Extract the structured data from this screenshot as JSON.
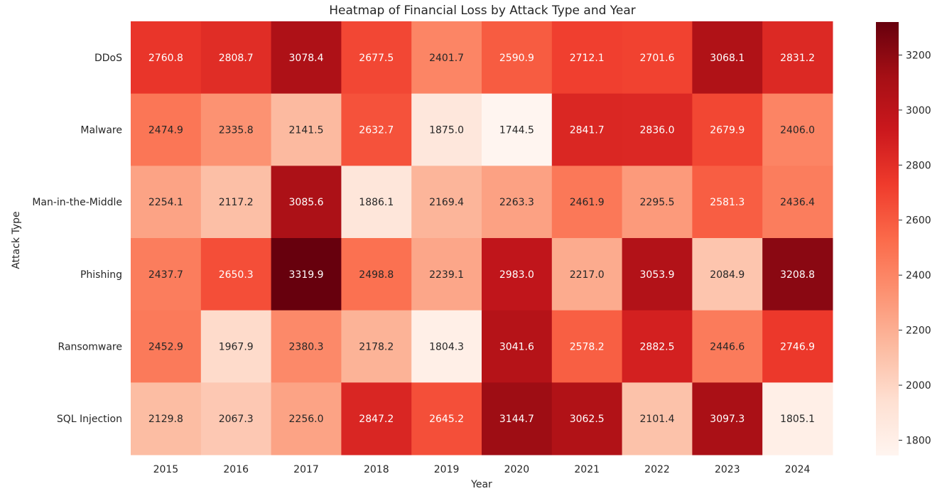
{
  "chart_data": {
    "type": "heatmap",
    "title": "Heatmap of Financial Loss by Attack Type and Year",
    "xlabel": "Year",
    "ylabel": "Attack Type",
    "x_categories": [
      "2015",
      "2016",
      "2017",
      "2018",
      "2019",
      "2020",
      "2021",
      "2022",
      "2023",
      "2024"
    ],
    "y_categories": [
      "DDoS",
      "Malware",
      "Man-in-the-Middle",
      "Phishing",
      "Ransomware",
      "SQL Injection"
    ],
    "values": [
      [
        2760.8,
        2808.7,
        3078.4,
        2677.5,
        2401.7,
        2590.9,
        2712.1,
        2701.6,
        3068.1,
        2831.2
      ],
      [
        2474.9,
        2335.8,
        2141.5,
        2632.7,
        1875.0,
        1744.5,
        2841.7,
        2836.0,
        2679.9,
        2406.0
      ],
      [
        2254.1,
        2117.2,
        3085.6,
        1886.1,
        2169.4,
        2263.3,
        2461.9,
        2295.5,
        2581.3,
        2436.4
      ],
      [
        2437.7,
        2650.3,
        3319.9,
        2498.8,
        2239.1,
        2983.0,
        2217.0,
        3053.9,
        2084.9,
        3208.8
      ],
      [
        2452.9,
        1967.9,
        2380.3,
        2178.2,
        1804.3,
        3041.6,
        2578.2,
        2882.5,
        2446.6,
        2746.9
      ],
      [
        2129.8,
        2067.3,
        2256.0,
        2847.2,
        2645.2,
        3144.7,
        3062.5,
        2101.4,
        3097.3,
        1805.1
      ]
    ],
    "value_format": "0.1f",
    "colormap": "Reds",
    "colormap_stops": [
      "#fff5f0",
      "#fee0d2",
      "#fcbba1",
      "#fc9272",
      "#fb6a4a",
      "#ef3b2c",
      "#cb181d",
      "#a50f15",
      "#67000d"
    ],
    "colorbar": {
      "range": [
        1744.5,
        3319.9
      ],
      "ticks": [
        1800,
        2000,
        2200,
        2400,
        2600,
        2800,
        3000,
        3200
      ]
    },
    "grid": false
  }
}
